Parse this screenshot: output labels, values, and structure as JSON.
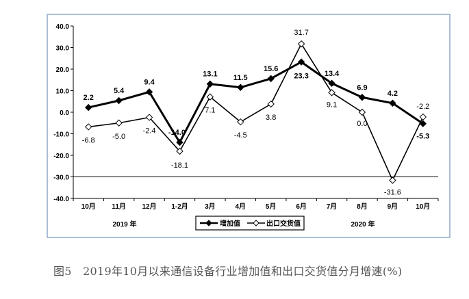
{
  "chart_data": {
    "type": "line",
    "categories": [
      "10月",
      "11月",
      "12月",
      "1-2月",
      "3月",
      "4月",
      "5月",
      "6月",
      "7月",
      "8月",
      "9月",
      "10月"
    ],
    "year_labels": [
      "2019 年",
      "2020 年"
    ],
    "ylim": [
      -40,
      40
    ],
    "yticks": [
      "40.0",
      "30.0",
      "20.0",
      "10.0",
      "0.0",
      "-10.0",
      "-20.0",
      "-30.0",
      "-40.0"
    ],
    "reference_line": -30,
    "legend_position": "bottom-center",
    "series": [
      {
        "name": "增加值",
        "marker": "filled-diamond",
        "color": "#000000",
        "values": [
          2.2,
          5.4,
          9.4,
          -14.0,
          13.1,
          11.5,
          15.6,
          23.3,
          13.4,
          6.9,
          4.2,
          -5.3
        ],
        "labels": [
          "2.2",
          "5.4",
          "9.4",
          "-14.0",
          "13.1",
          "11.5",
          "15.6",
          "23.3",
          "13.4",
          "6.9",
          "4.2",
          "-5.3"
        ]
      },
      {
        "name": "出口交货值",
        "marker": "open-diamond",
        "color": "#000000",
        "values": [
          -6.8,
          -5.0,
          -2.4,
          -18.1,
          7.1,
          -4.5,
          3.8,
          31.7,
          9.1,
          0.0,
          -31.6,
          -2.2
        ],
        "labels": [
          "-6.8",
          "-5.0",
          "-2.4",
          "-18.1",
          "7.1",
          "-4.5",
          "3.8",
          "31.7",
          "9.1",
          "0.0",
          "-31.6",
          "-2.2"
        ]
      }
    ]
  },
  "caption": "图5　2019年10月以来通信设备行业增加值和出口交货值分月增速(%)",
  "colors": {
    "frame_border": "#8fa8c8",
    "line": "#000000",
    "caption_text": "#555555"
  }
}
